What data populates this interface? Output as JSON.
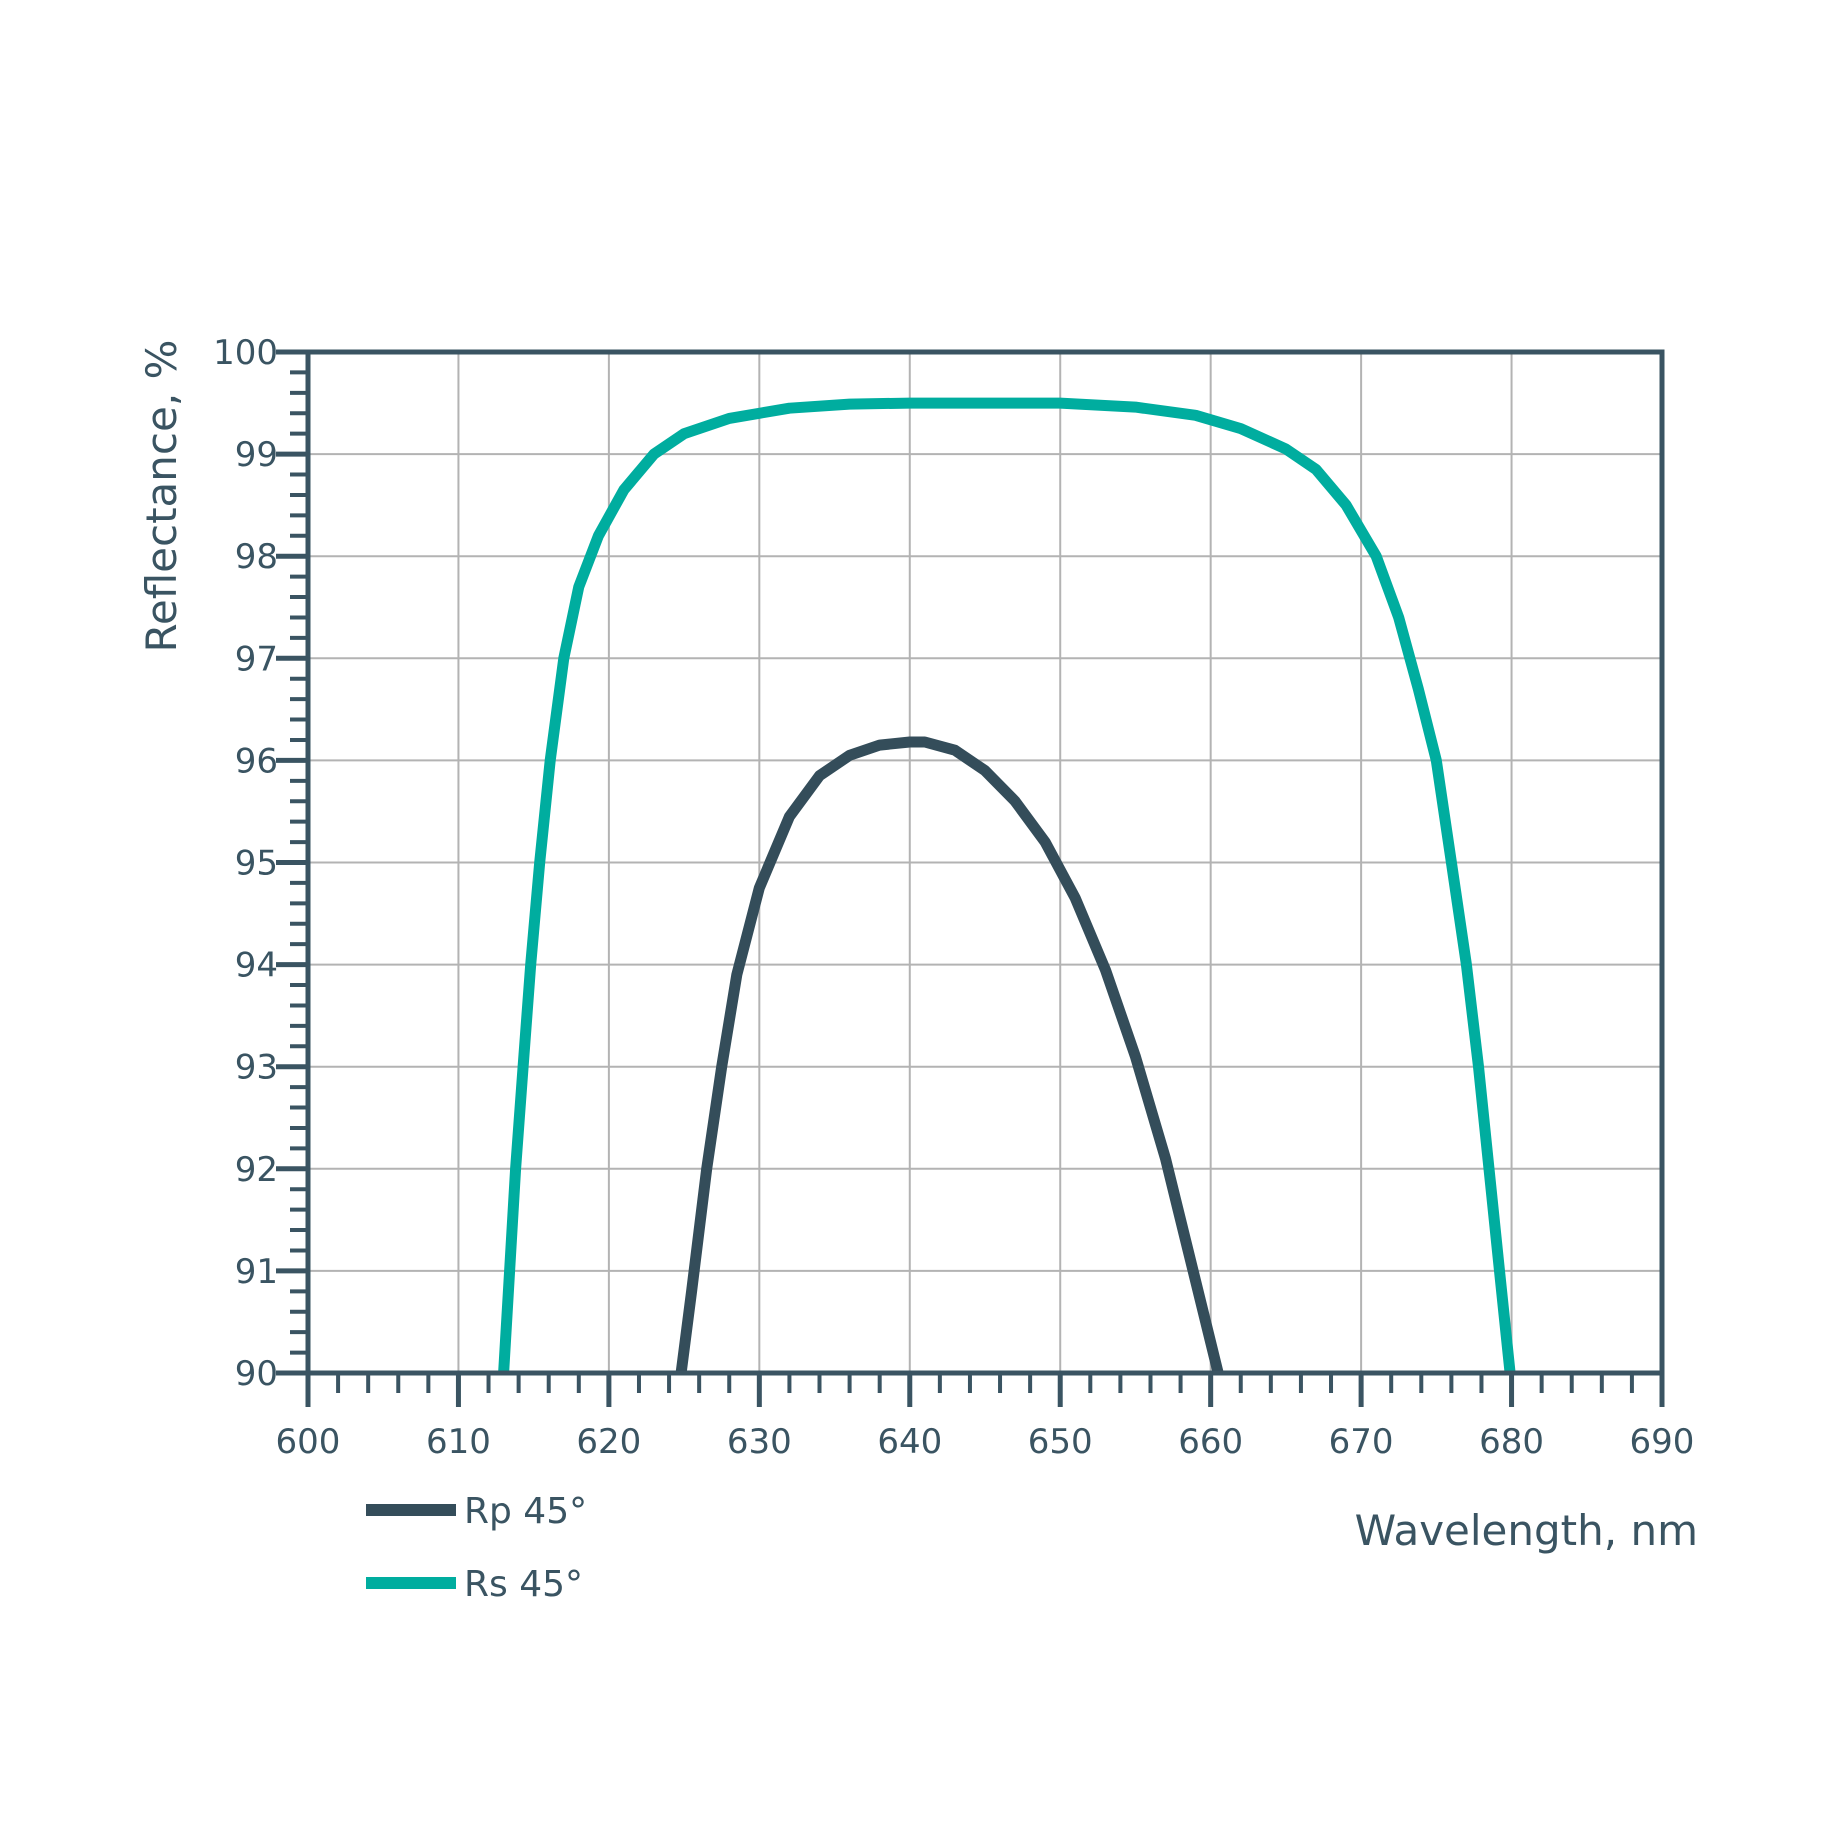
{
  "chart_data": {
    "type": "line",
    "xlabel": "Wavelength, nm",
    "ylabel": "Reflectance, %",
    "xlim": [
      600,
      690
    ],
    "ylim": [
      90,
      100
    ],
    "x_ticks": [
      600,
      610,
      620,
      630,
      640,
      650,
      660,
      670,
      680,
      690
    ],
    "y_ticks": [
      90,
      91,
      92,
      93,
      94,
      95,
      96,
      97,
      98,
      99,
      100
    ],
    "x_minor_step": 2,
    "y_minor_step": 0.2,
    "grid": true,
    "legend_position": "bottom-left",
    "series": [
      {
        "name": "Rp 45°",
        "color": "#344d5a",
        "points": [
          [
            624.8,
            90.0
          ],
          [
            625.5,
            90.8
          ],
          [
            626.5,
            92.0
          ],
          [
            627.5,
            93.0
          ],
          [
            628.5,
            93.9
          ],
          [
            630,
            94.75
          ],
          [
            632,
            95.45
          ],
          [
            634,
            95.85
          ],
          [
            636,
            96.05
          ],
          [
            638,
            96.15
          ],
          [
            640,
            96.18
          ],
          [
            641,
            96.18
          ],
          [
            643,
            96.1
          ],
          [
            645,
            95.9
          ],
          [
            647,
            95.6
          ],
          [
            649,
            95.2
          ],
          [
            651,
            94.65
          ],
          [
            653,
            93.95
          ],
          [
            655,
            93.1
          ],
          [
            657,
            92.1
          ],
          [
            658.5,
            91.2
          ],
          [
            660,
            90.3
          ],
          [
            660.5,
            90.0
          ]
        ]
      },
      {
        "name": "Rs 45°",
        "color": "#00ad9f",
        "points": [
          [
            613.0,
            90.0
          ],
          [
            613.4,
            91.0
          ],
          [
            613.8,
            92.0
          ],
          [
            614.3,
            93.0
          ],
          [
            614.8,
            94.0
          ],
          [
            615.4,
            95.0
          ],
          [
            616.1,
            96.0
          ],
          [
            617.0,
            97.0
          ],
          [
            618.0,
            97.7
          ],
          [
            619.3,
            98.2
          ],
          [
            621,
            98.65
          ],
          [
            623,
            99.0
          ],
          [
            625,
            99.2
          ],
          [
            628,
            99.35
          ],
          [
            632,
            99.45
          ],
          [
            636,
            99.49
          ],
          [
            640,
            99.5
          ],
          [
            645,
            99.5
          ],
          [
            650,
            99.5
          ],
          [
            655,
            99.46
          ],
          [
            659,
            99.38
          ],
          [
            662,
            99.25
          ],
          [
            665,
            99.05
          ],
          [
            667,
            98.85
          ],
          [
            669,
            98.5
          ],
          [
            671,
            98.0
          ],
          [
            672.5,
            97.4
          ],
          [
            673.8,
            96.7
          ],
          [
            675,
            96.0
          ],
          [
            676,
            95.0
          ],
          [
            677,
            94.0
          ],
          [
            677.8,
            93.0
          ],
          [
            678.5,
            92.0
          ],
          [
            679.2,
            91.0
          ],
          [
            679.9,
            90.0
          ]
        ]
      }
    ]
  }
}
